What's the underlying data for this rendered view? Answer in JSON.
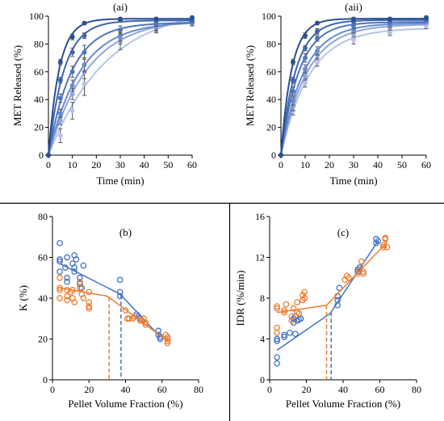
{
  "chart_data": [
    {
      "panel": "(ai)",
      "type": "line",
      "title": "(ai)",
      "xlabel": "Time (min)",
      "ylabel": "MET Released (%)",
      "xlim": [
        0,
        60
      ],
      "ylim": [
        0,
        100
      ],
      "xticks": [
        0,
        10,
        20,
        30,
        40,
        50,
        60
      ],
      "yticks": [
        0,
        20,
        40,
        60,
        80,
        100
      ],
      "x": [
        0,
        5,
        10,
        15,
        30,
        45,
        60
      ],
      "series": [
        {
          "color": "#2a4f91",
          "values": [
            0,
            67,
            85,
            95,
            98,
            98,
            99
          ],
          "errors": [
            0,
            2,
            2,
            1,
            1,
            1,
            1
          ]
        },
        {
          "color": "#3d65ad",
          "values": [
            0,
            54,
            74,
            86,
            97,
            97,
            97
          ],
          "errors": [
            0,
            2,
            3,
            2,
            1,
            1,
            1
          ]
        },
        {
          "color": "#4f76bd",
          "values": [
            0,
            41,
            60,
            74,
            90,
            95,
            96
          ],
          "errors": [
            0,
            3,
            4,
            5,
            3,
            2,
            1
          ]
        },
        {
          "color": "#6a8ad0",
          "values": [
            0,
            30,
            50,
            65,
            86,
            93,
            95
          ],
          "errors": [
            0,
            3,
            4,
            5,
            4,
            3,
            2
          ]
        },
        {
          "color": "#8ea6dd",
          "values": [
            0,
            25,
            44,
            60,
            84,
            92,
            95
          ],
          "errors": [
            0,
            3,
            4,
            5,
            4,
            3,
            2
          ]
        },
        {
          "color": "#b4c4e8",
          "values": [
            0,
            14,
            32,
            51,
            82,
            91,
            95
          ],
          "errors": [
            0,
            5,
            6,
            8,
            6,
            3,
            2
          ]
        }
      ]
    },
    {
      "panel": "(aii)",
      "type": "line",
      "title": "(aii)",
      "xlabel": "Time (min)",
      "ylabel": "MET Released (%)",
      "xlim": [
        0,
        60
      ],
      "ylim": [
        0,
        100
      ],
      "xticks": [
        0,
        10,
        20,
        30,
        40,
        50,
        60
      ],
      "yticks": [
        0,
        20,
        40,
        60,
        80,
        100
      ],
      "x": [
        0,
        5,
        10,
        15,
        30,
        45,
        60
      ],
      "series": [
        {
          "color": "#2a4f91",
          "values": [
            0,
            67,
            86,
            95,
            98,
            98,
            99
          ],
          "errors": [
            0,
            2,
            2,
            1,
            1,
            1,
            1
          ]
        },
        {
          "color": "#3d65ad",
          "values": [
            0,
            54,
            77,
            89,
            96,
            97,
            98
          ],
          "errors": [
            0,
            2,
            2,
            2,
            1,
            1,
            1
          ]
        },
        {
          "color": "#4f76bd",
          "values": [
            0,
            46,
            70,
            84,
            93,
            95,
            97
          ],
          "errors": [
            0,
            3,
            3,
            2,
            2,
            1,
            1
          ]
        },
        {
          "color": "#6a8ad0",
          "values": [
            0,
            39,
            62,
            75,
            90,
            94,
            96
          ],
          "errors": [
            0,
            3,
            3,
            3,
            2,
            2,
            1
          ]
        },
        {
          "color": "#8ea6dd",
          "values": [
            0,
            35,
            57,
            72,
            87,
            92,
            95
          ],
          "errors": [
            0,
            3,
            3,
            3,
            2,
            2,
            1
          ]
        },
        {
          "color": "#b4c4e8",
          "values": [
            0,
            32,
            52,
            67,
            83,
            88,
            93
          ],
          "errors": [
            0,
            3,
            3,
            3,
            3,
            2,
            2
          ]
        }
      ]
    },
    {
      "panel": "(b)",
      "type": "scatter",
      "title": "(b)",
      "xlabel": "Pellet Volume Fraction (%)",
      "ylabel": "K (%)",
      "xlim": [
        0,
        80
      ],
      "ylim": [
        0,
        80
      ],
      "xticks": [
        0,
        20,
        40,
        60,
        80
      ],
      "yticks": [
        0,
        20,
        40,
        60,
        80
      ],
      "series": [
        {
          "color": "#4472c4",
          "points": [
            [
              4,
              67
            ],
            [
              4,
              59
            ],
            [
              4,
              58
            ],
            [
              4,
              53
            ],
            [
              7,
              55
            ],
            [
              8,
              60
            ],
            [
              8,
              50
            ],
            [
              8,
              48
            ],
            [
              11,
              57
            ],
            [
              12,
              61
            ],
            [
              12,
              55
            ],
            [
              12,
              53
            ],
            [
              13,
              59
            ],
            [
              15,
              50
            ],
            [
              15,
              47
            ],
            [
              16,
              45
            ],
            [
              17,
              56
            ],
            [
              37,
              49
            ],
            [
              37,
              43
            ],
            [
              37,
              41
            ],
            [
              46,
              32
            ],
            [
              47,
              31
            ],
            [
              48,
              30
            ],
            [
              49,
              29
            ],
            [
              58,
              24
            ],
            [
              58,
              22
            ],
            [
              59,
              21
            ],
            [
              59,
              20
            ]
          ],
          "fit": [
            [
              4,
              57
            ],
            [
              37,
              42
            ],
            [
              59,
              21
            ]
          ],
          "threshold": 37.5
        },
        {
          "color": "#ed7d31",
          "points": [
            [
              4,
              50
            ],
            [
              4,
              45
            ],
            [
              4,
              44
            ],
            [
              4,
              40
            ],
            [
              8,
              44
            ],
            [
              8,
              41
            ],
            [
              8,
              39
            ],
            [
              10,
              43
            ],
            [
              11,
              44
            ],
            [
              11,
              40
            ],
            [
              12,
              38
            ],
            [
              15,
              48
            ],
            [
              15,
              45
            ],
            [
              16,
              42
            ],
            [
              17,
              40
            ],
            [
              20,
              43
            ],
            [
              20,
              38
            ],
            [
              20,
              36
            ],
            [
              20,
              35
            ],
            [
              40,
              34
            ],
            [
              41,
              30
            ],
            [
              42,
              30
            ],
            [
              44,
              30
            ],
            [
              45,
              31
            ],
            [
              48,
              29
            ],
            [
              49,
              29
            ],
            [
              50,
              30
            ],
            [
              51,
              28
            ],
            [
              51,
              27
            ],
            [
              62,
              22
            ],
            [
              63,
              21
            ],
            [
              63,
              20
            ],
            [
              63,
              19
            ],
            [
              63,
              18
            ]
          ],
          "fit": [
            [
              4,
              45
            ],
            [
              30,
              41
            ],
            [
              63,
              19
            ]
          ],
          "threshold": 31
        }
      ]
    },
    {
      "panel": "(c)",
      "type": "scatter",
      "title": "(c)",
      "xlabel": "Pellet Volume Fraction (%)",
      "ylabel": "IDR (%/min)",
      "xlim": [
        0,
        80
      ],
      "ylim": [
        0,
        16
      ],
      "xticks": [
        0,
        20,
        40,
        60,
        80
      ],
      "yticks": [
        0,
        4,
        8,
        12,
        16
      ],
      "series": [
        {
          "color": "#4472c4",
          "points": [
            [
              4,
              2.2
            ],
            [
              4,
              1.6
            ],
            [
              4,
              3.8
            ],
            [
              4,
              4.0
            ],
            [
              8,
              4.4
            ],
            [
              8,
              4.2
            ],
            [
              11,
              4.6
            ],
            [
              13,
              6.0
            ],
            [
              13,
              5.6
            ],
            [
              14,
              6.2
            ],
            [
              14,
              4.5
            ],
            [
              15,
              5.8
            ],
            [
              16,
              5.9
            ],
            [
              17,
              6.0
            ],
            [
              37,
              7.3
            ],
            [
              37,
              7.8
            ],
            [
              37,
              8.2
            ],
            [
              38,
              9.0
            ],
            [
              48,
              10.6
            ],
            [
              48,
              10.8
            ],
            [
              49,
              11.0
            ],
            [
              58,
              13.4
            ],
            [
              58,
              13.8
            ],
            [
              59,
              13.6
            ]
          ],
          "fit": [
            [
              4,
              2.9
            ],
            [
              33,
              6.5
            ],
            [
              59,
              13.6
            ]
          ],
          "threshold": 33.5
        },
        {
          "color": "#ed7d31",
          "points": [
            [
              4,
              7.2
            ],
            [
              4,
              7.0
            ],
            [
              4,
              5.1
            ],
            [
              4,
              4.6
            ],
            [
              8,
              6.8
            ],
            [
              8,
              6.6
            ],
            [
              9,
              7.4
            ],
            [
              12,
              6.2
            ],
            [
              12,
              5.8
            ],
            [
              13,
              7.0
            ],
            [
              15,
              7.6
            ],
            [
              15,
              6.6
            ],
            [
              16,
              6.5
            ],
            [
              18,
              7.8
            ],
            [
              18,
              8.3
            ],
            [
              19,
              8.6
            ],
            [
              19,
              8.0
            ],
            [
              41,
              9.8
            ],
            [
              42,
              10.2
            ],
            [
              43,
              10.0
            ],
            [
              48,
              10.4
            ],
            [
              49,
              10.8
            ],
            [
              50,
              11.6
            ],
            [
              51,
              10.6
            ],
            [
              51,
              10.4
            ],
            [
              62,
              13.2
            ],
            [
              62,
              13.0
            ],
            [
              63,
              13.8
            ],
            [
              63,
              13.9
            ],
            [
              64,
              13.0
            ]
          ],
          "fit": [
            [
              4,
              6.6
            ],
            [
              31,
              7.3
            ],
            [
              64,
              13.5
            ]
          ],
          "threshold": 31
        }
      ]
    }
  ]
}
